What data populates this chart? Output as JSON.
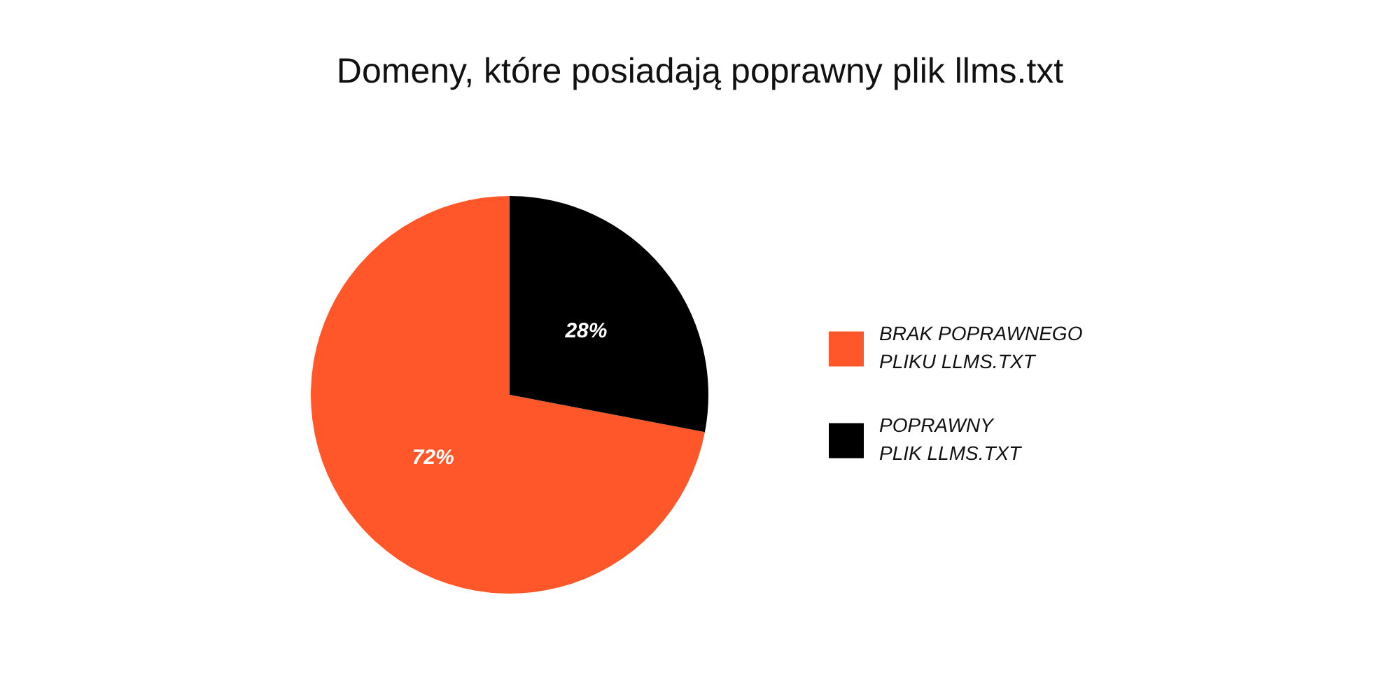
{
  "chart_data": {
    "type": "pie",
    "title": "Domeny, które posiadają poprawny plik llms.txt",
    "categories": [
      "BRAK POPRAWNEGO PLIKU LLMS.TXT",
      "POPRAWNY PLIK LLMS.TXT"
    ],
    "values": [
      72,
      28
    ],
    "colors": [
      "#ff5729",
      "#000000"
    ],
    "value_labels": [
      "72%",
      "28%"
    ],
    "legend": "right"
  }
}
